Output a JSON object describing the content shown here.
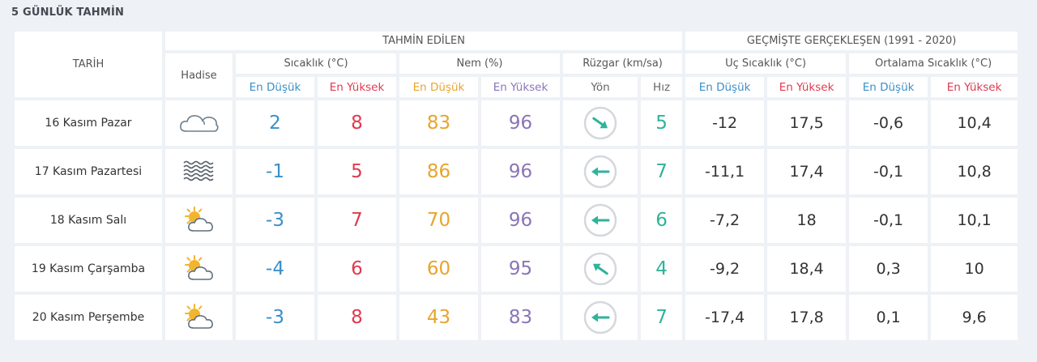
{
  "page": {
    "title": "5 GÜNLÜK TAHMİN"
  },
  "headers": {
    "date": "TARİH",
    "forecast_group": "TAHMİN EDİLEN",
    "history_group": "GEÇMİŞTE GERÇEKLEŞEN (1991 - 2020)",
    "phenomenon": "Hadise",
    "temperature": "Sıcaklık (°C)",
    "humidity": "Nem (%)",
    "wind": "Rüzgar (km/sa)",
    "extreme_temp": "Uç Sıcaklık (°C)",
    "avg_temp": "Ortalama Sıcaklık (°C)",
    "min": "En Düşük",
    "max": "En Yüksek",
    "direction": "Yön",
    "speed": "Hız"
  },
  "colors": {
    "min_label": "#3a8fc8",
    "max_label": "#e0394e",
    "humidity_min": "#e8a42c",
    "humidity_max": "#8a75b8",
    "wind_speed": "#2fb39a",
    "wind_arrow": "#2fb39a"
  },
  "rows": [
    {
      "date": "16 Kasım Pazar",
      "icon": "cloudy-icon",
      "temp_min": "2",
      "temp_max": "8",
      "hum_min": "83",
      "hum_max": "96",
      "wind_dir": "arrow-down-right-icon",
      "wind_speed": "5",
      "ext_min": "-12",
      "ext_max": "17,5",
      "avg_min": "-0,6",
      "avg_max": "10,4"
    },
    {
      "date": "17 Kasım Pazartesi",
      "icon": "fog-icon",
      "temp_min": "-1",
      "temp_max": "5",
      "hum_min": "86",
      "hum_max": "96",
      "wind_dir": "arrow-left-icon",
      "wind_speed": "7",
      "ext_min": "-11,1",
      "ext_max": "17,4",
      "avg_min": "-0,1",
      "avg_max": "10,8"
    },
    {
      "date": "18 Kasım Salı",
      "icon": "partly-cloudy-icon",
      "temp_min": "-3",
      "temp_max": "7",
      "hum_min": "70",
      "hum_max": "96",
      "wind_dir": "arrow-left-icon",
      "wind_speed": "6",
      "ext_min": "-7,2",
      "ext_max": "18",
      "avg_min": "-0,1",
      "avg_max": "10,1"
    },
    {
      "date": "19 Kasım Çarşamba",
      "icon": "partly-cloudy-icon",
      "temp_min": "-4",
      "temp_max": "6",
      "hum_min": "60",
      "hum_max": "95",
      "wind_dir": "arrow-up-left-icon",
      "wind_speed": "4",
      "ext_min": "-9,2",
      "ext_max": "18,4",
      "avg_min": "0,3",
      "avg_max": "10"
    },
    {
      "date": "20 Kasım Perşembe",
      "icon": "partly-cloudy-icon",
      "temp_min": "-3",
      "temp_max": "8",
      "hum_min": "43",
      "hum_max": "83",
      "wind_dir": "arrow-left-icon",
      "wind_speed": "7",
      "ext_min": "-17,4",
      "ext_max": "17,8",
      "avg_min": "0,1",
      "avg_max": "9,6"
    }
  ]
}
